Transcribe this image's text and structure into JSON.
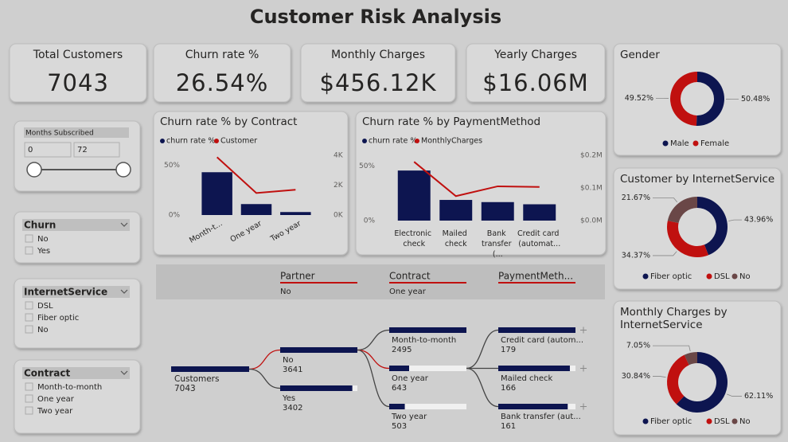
{
  "title": "Customer Risk Analysis",
  "kpis": [
    {
      "label": "Total Customers",
      "value": "7043"
    },
    {
      "label": "Churn rate %",
      "value": "26.54%"
    },
    {
      "label": "Monthly Charges",
      "value": "$456.12K"
    },
    {
      "label": "Yearly Charges",
      "value": "$16.06M"
    }
  ],
  "slicers": [
    {
      "title": "Months Subscribed",
      "from": 0,
      "to": 72
    },
    {
      "title": "Churn",
      "options": [
        "No",
        "Yes"
      ]
    },
    {
      "title": "InternetService",
      "options": [
        "DSL",
        "Fiber optic",
        "No"
      ]
    },
    {
      "title": "Contract",
      "options": [
        "Month-to-month",
        "One year",
        "Two year"
      ]
    }
  ],
  "chart_data": [
    {
      "type": "combo",
      "title": "Churn rate % by Contract",
      "categories": [
        "Month-t...",
        "One year",
        "Two year"
      ],
      "series": [
        {
          "name": "churn rate %",
          "color": "#0d1550",
          "values": [
            43,
            11,
            3
          ]
        },
        {
          "name": "Customer",
          "color": "#c0100f",
          "axis": "y2",
          "values": [
            3875,
            1473,
            1695
          ]
        }
      ],
      "ylim": [
        0,
        60
      ],
      "yticks": [
        {
          "value": 0,
          "label": "0%"
        },
        {
          "value": 50,
          "label": "50%"
        }
      ],
      "y2lim": [
        0,
        4000
      ],
      "y2ticks": [
        {
          "value": 0,
          "label": "0K"
        },
        {
          "value": 2000,
          "label": "2K"
        },
        {
          "value": 4000,
          "label": "4K"
        }
      ],
      "legend": "top-left"
    },
    {
      "type": "combo",
      "title": "Churn rate % by PaymentMethod",
      "categories": [
        "Electronic check",
        "Mailed check",
        "Bank transfer (...",
        "Credit card (automat..."
      ],
      "series": [
        {
          "name": "churn rate %",
          "color": "#0d1550",
          "values": [
            46,
            19,
            17,
            15
          ]
        },
        {
          "name": "MonthlyCharges",
          "color": "#c0100f",
          "axis": "y2",
          "values": [
            180000,
            75000,
            105000,
            103000
          ]
        }
      ],
      "ylim": [
        0,
        60
      ],
      "yticks": [
        {
          "value": 0,
          "label": "0%"
        },
        {
          "value": 50,
          "label": "50%"
        }
      ],
      "y2lim": [
        0,
        200000
      ],
      "y2ticks": [
        {
          "value": 0,
          "label": "$0.0M"
        },
        {
          "value": 100000,
          "label": "$0.1M"
        },
        {
          "value": 200000,
          "label": "$0.2M"
        }
      ],
      "legend": "top-left"
    },
    {
      "type": "donut",
      "title": "Gender",
      "categories": [
        "Male",
        "Female"
      ],
      "values": [
        50.48,
        49.52
      ],
      "value_labels": [
        "50.48%",
        "49.52%"
      ],
      "colors": [
        "#0d1550",
        "#c0100f"
      ],
      "legend": "bottom"
    },
    {
      "type": "donut",
      "title": "Customer by InternetService",
      "categories": [
        "Fiber optic",
        "DSL",
        "No"
      ],
      "values": [
        43.96,
        34.37,
        21.67
      ],
      "value_labels": [
        "43.96%",
        "34.37%",
        "21.67%"
      ],
      "colors": [
        "#0d1550",
        "#c0100f",
        "#6a4747"
      ],
      "legend": "bottom"
    },
    {
      "type": "donut",
      "title": "Monthly Charges by InternetService",
      "categories": [
        "Fiber optic",
        "DSL",
        "No"
      ],
      "values": [
        62.11,
        30.84,
        7.05
      ],
      "value_labels": [
        "62.11%",
        "30.84%",
        "7.05%"
      ],
      "colors": [
        "#0d1550",
        "#c0100f",
        "#6a4747"
      ],
      "legend": "bottom"
    }
  ],
  "decomposition_tree": {
    "columns": [
      {
        "name": "Partner",
        "selected": "No"
      },
      {
        "name": "Contract",
        "selected": "One year"
      },
      {
        "name": "PaymentMeth..."
      }
    ],
    "root": {
      "label": "Customers",
      "value": 7043
    },
    "levels": [
      [
        {
          "label": "No",
          "value": 3641
        },
        {
          "label": "Yes",
          "value": 3402
        }
      ],
      [
        {
          "label": "Month-to-month",
          "value": 2495
        },
        {
          "label": "One year",
          "value": 643
        },
        {
          "label": "Two year",
          "value": 503
        }
      ],
      [
        {
          "label": "Credit card (autom...",
          "value": 179
        },
        {
          "label": "Mailed check",
          "value": 166
        },
        {
          "label": "Bank transfer (aut...",
          "value": 161
        }
      ]
    ]
  }
}
